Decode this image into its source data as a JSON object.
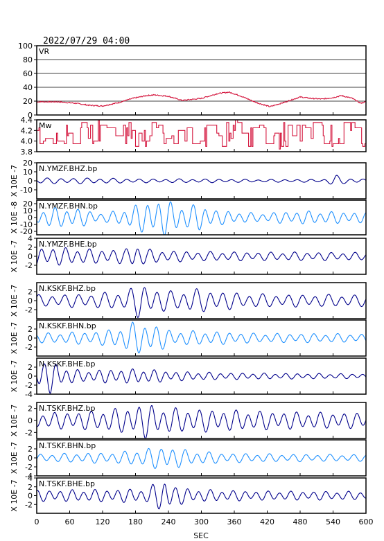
{
  "title": "2022/07/29 04:00",
  "chart_data": {
    "type": "line",
    "xlabel": "SEC",
    "xlim": [
      0,
      600
    ],
    "xticks": [
      0,
      60,
      120,
      180,
      240,
      300,
      360,
      420,
      480,
      540,
      600
    ],
    "panels": [
      {
        "name": "VR",
        "ylim": [
          0,
          100
        ],
        "yticks": [
          0,
          20,
          40,
          60,
          80,
          100
        ],
        "ylabel": "",
        "grid": true,
        "color": "#d4143c",
        "gen": {
          "kind": "vr",
          "anchors": [
            [
              0,
              19
            ],
            [
              40,
              19
            ],
            [
              70,
              17
            ],
            [
              95,
              14
            ],
            [
              120,
              13
            ],
            [
              150,
              18
            ],
            [
              175,
              24
            ],
            [
              200,
              28
            ],
            [
              215,
              29
            ],
            [
              240,
              27
            ],
            [
              265,
              21
            ],
            [
              300,
              24
            ],
            [
              330,
              31
            ],
            [
              350,
              33
            ],
            [
              370,
              28
            ],
            [
              400,
              18
            ],
            [
              425,
              12
            ],
            [
              450,
              18
            ],
            [
              480,
              26
            ],
            [
              500,
              24
            ],
            [
              520,
              23
            ],
            [
              540,
              25
            ],
            [
              555,
              28
            ],
            [
              575,
              24
            ],
            [
              590,
              17
            ],
            [
              600,
              19
            ]
          ]
        }
      },
      {
        "name": "Mw",
        "ylim": [
          3.8,
          4.4
        ],
        "yticks": [
          3.8,
          4.0,
          4.2,
          4.4
        ],
        "ylabel": "",
        "grid": false,
        "color": "#d4143c",
        "gen": {
          "kind": "step"
        }
      },
      {
        "name": "N.YMZF.BHZ.bp",
        "ylim": [
          -20,
          20
        ],
        "yticks": [
          -10,
          0,
          10,
          20
        ],
        "ylabel": "X 10E -7",
        "color": "#00008b",
        "gen": {
          "kind": "wave",
          "period": 24,
          "env": [
            [
              0,
              3
            ],
            [
              100,
              3
            ],
            [
              200,
              2
            ],
            [
              300,
              2
            ],
            [
              400,
              1.5
            ],
            [
              520,
              1.5
            ],
            [
              545,
              6
            ],
            [
              560,
              3
            ],
            [
              600,
              2
            ]
          ]
        }
      },
      {
        "name": "N.YMZF.BHN.bp",
        "ylim": [
          -25,
          25
        ],
        "yticks": [
          -20,
          -10,
          0,
          10,
          20
        ],
        "ylabel": "X 10E -8",
        "color": "#1e90ff",
        "gen": {
          "kind": "wave",
          "period": 21,
          "env": [
            [
              0,
              10
            ],
            [
              40,
              14
            ],
            [
              80,
              12
            ],
            [
              120,
              6
            ],
            [
              150,
              10
            ],
            [
              200,
              22
            ],
            [
              230,
              25
            ],
            [
              270,
              16
            ],
            [
              300,
              18
            ],
            [
              330,
              10
            ],
            [
              400,
              6
            ],
            [
              480,
              9
            ],
            [
              550,
              8
            ],
            [
              600,
              7
            ]
          ]
        }
      },
      {
        "name": "N.YMZF.BHE.bp",
        "ylim": [
          -4,
          4
        ],
        "yticks": [
          -2,
          0,
          2,
          4
        ],
        "ylabel": "X 10E -7",
        "color": "#00008b",
        "gen": {
          "kind": "wave",
          "period": 22,
          "env": [
            [
              0,
              2
            ],
            [
              60,
              1.8
            ],
            [
              100,
              1.5
            ],
            [
              160,
              1.5
            ],
            [
              180,
              2.8
            ],
            [
              200,
              1.5
            ],
            [
              240,
              1.2
            ],
            [
              300,
              1
            ],
            [
              400,
              0.9
            ],
            [
              500,
              0.9
            ],
            [
              600,
              0.8
            ]
          ]
        }
      },
      {
        "name": "N.KSKF.BHZ.bp",
        "ylim": [
          -4,
          4
        ],
        "yticks": [
          -2,
          0,
          2
        ],
        "ylabel": "X 10E -7",
        "color": "#00008b",
        "gen": {
          "kind": "wave",
          "period": 24,
          "env": [
            [
              0,
              1.2
            ],
            [
              100,
              1.5
            ],
            [
              160,
              2
            ],
            [
              190,
              3.8
            ],
            [
              215,
              2.5
            ],
            [
              250,
              2
            ],
            [
              290,
              2.5
            ],
            [
              320,
              2.2
            ],
            [
              380,
              1.5
            ],
            [
              450,
              1.3
            ],
            [
              540,
              1.3
            ],
            [
              600,
              1.2
            ]
          ]
        }
      },
      {
        "name": "N.KSKF.BHN.bp",
        "ylim": [
          -4,
          4
        ],
        "yticks": [
          -2,
          0,
          2
        ],
        "ylabel": "X 10E -7",
        "color": "#1e90ff",
        "gen": {
          "kind": "wave",
          "period": 22,
          "env": [
            [
              0,
              1
            ],
            [
              120,
              1.5
            ],
            [
              160,
              2.5
            ],
            [
              180,
              3.5
            ],
            [
              210,
              3
            ],
            [
              250,
              1.5
            ],
            [
              300,
              1.5
            ],
            [
              400,
              1
            ],
            [
              600,
              0.9
            ]
          ]
        }
      },
      {
        "name": "N.KSKF.BHE.bp",
        "ylim": [
          -4,
          4
        ],
        "yticks": [
          -4,
          -2,
          0,
          2
        ],
        "ylabel": "X 10E -7",
        "color": "#00008b",
        "gen": {
          "kind": "wave",
          "period": 20,
          "env": [
            [
              0,
              2.5
            ],
            [
              25,
              3.5
            ],
            [
              45,
              2
            ],
            [
              80,
              1.2
            ],
            [
              150,
              1.5
            ],
            [
              200,
              1.5
            ],
            [
              250,
              1
            ],
            [
              350,
              0.7
            ],
            [
              450,
              0.6
            ],
            [
              600,
              0.5
            ]
          ]
        }
      },
      {
        "name": "N.TSKF.BHZ.bp",
        "ylim": [
          -3,
          3
        ],
        "yticks": [
          -2,
          0,
          2
        ],
        "ylabel": "X 10E -7",
        "color": "#00008b",
        "gen": {
          "kind": "wave",
          "period": 22,
          "env": [
            [
              0,
              1.2
            ],
            [
              100,
              1.5
            ],
            [
              160,
              2
            ],
            [
              200,
              2.8
            ],
            [
              230,
              2
            ],
            [
              300,
              1.8
            ],
            [
              400,
              1.5
            ],
            [
              500,
              1.3
            ],
            [
              600,
              1.2
            ]
          ]
        }
      },
      {
        "name": "N.TSKF.BHN.bp",
        "ylim": [
          -4,
          4
        ],
        "yticks": [
          -4,
          -2,
          0,
          2
        ],
        "ylabel": "X 10E -7",
        "color": "#1e90ff",
        "gen": {
          "kind": "wave",
          "period": 22,
          "env": [
            [
              0,
              0.8
            ],
            [
              150,
              1.2
            ],
            [
              200,
              2
            ],
            [
              240,
              2.5
            ],
            [
              280,
              1.5
            ],
            [
              350,
              1
            ],
            [
              450,
              0.8
            ],
            [
              600,
              0.7
            ]
          ]
        }
      },
      {
        "name": "N.TSKF.BHE.bp",
        "ylim": [
          -4,
          4
        ],
        "yticks": [
          -2,
          0,
          2,
          4
        ],
        "ylabel": "X 10E -7",
        "color": "#00008b",
        "gen": {
          "kind": "wave",
          "period": 21,
          "env": [
            [
              0,
              1.2
            ],
            [
              100,
              1.3
            ],
            [
              200,
              1.5
            ],
            [
              235,
              4
            ],
            [
              250,
              2
            ],
            [
              300,
              1.3
            ],
            [
              400,
              1
            ],
            [
              600,
              0.9
            ]
          ]
        }
      }
    ]
  }
}
